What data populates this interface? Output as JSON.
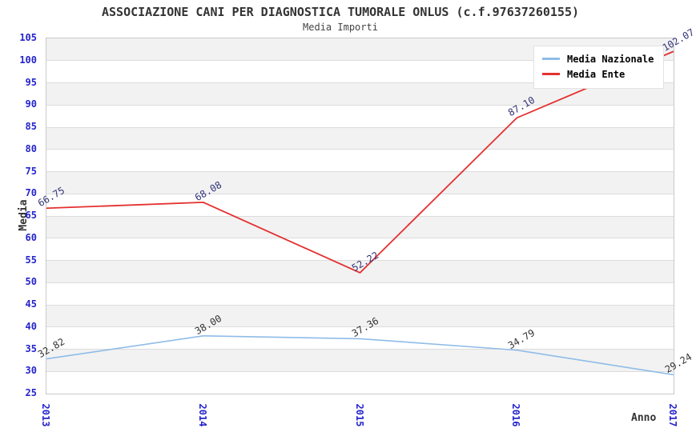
{
  "chart_data": {
    "type": "line",
    "title": "ASSOCIAZIONE CANI PER DIAGNOSTICA TUMORALE ONLUS (c.f.97637260155)",
    "subtitle": "Media Importi",
    "xlabel": "Anno",
    "ylabel": "Media",
    "categories": [
      "2013",
      "2014",
      "2015",
      "2016",
      "2017"
    ],
    "ylim": [
      25,
      105
    ],
    "ytick_step": 5,
    "grid": "horizontal-bands",
    "legend_position": "top-right",
    "series": [
      {
        "name": "Media Nazionale",
        "color": "#8fbce8",
        "label_color": "#333333",
        "line_width": 1.6,
        "values": [
          32.82,
          38.0,
          37.36,
          34.79,
          29.24
        ],
        "labels": [
          "32.82",
          "38.00",
          "37.36",
          "34.79",
          "29.24"
        ]
      },
      {
        "name": "Media Ente",
        "color": "#e53030",
        "label_color": "#333377",
        "line_width": 1.8,
        "values": [
          66.75,
          68.08,
          52.22,
          87.1,
          102.07
        ],
        "labels": [
          "66.75",
          "68.08",
          "52.22",
          "87.10",
          "102.07"
        ]
      }
    ],
    "colors": {
      "tick_label": "#2424cc",
      "stripe": "#f2f2f2",
      "grid_line": "#dcdcdc",
      "plot_border": "#c9c9c9",
      "title_text": "#333333"
    }
  }
}
